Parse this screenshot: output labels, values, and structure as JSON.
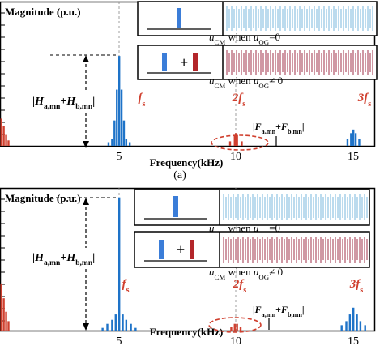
{
  "caption_a": "(a)",
  "chart_data": [
    {
      "type": "bar",
      "ylabel": "Magnitude (p.u.)",
      "xlabel": "Frequency(kHz)",
      "xlim": [
        0,
        16
      ],
      "x_ticks": [
        "5",
        "10",
        "15"
      ],
      "grid": true,
      "harmonic_labels": {
        "fs": "f",
        "fs_sub": "s",
        "two_fs": "2f",
        "three_fs": "3f"
      },
      "annotation_H": {
        "open": "|",
        "H": "H",
        "a_sub": "a,mn",
        "plus": "+",
        "b_sub": "b,mn",
        "close": "|"
      },
      "annotation_F": {
        "open": "|",
        "F": "F",
        "a_sub": "a,mn",
        "plus": "+",
        "b_sub": "b,mn",
        "close": "|"
      },
      "inset_top_caption": {
        "u": "u",
        "cm": "CM",
        "when": " when ",
        "uog": "u",
        "og": "OG",
        "rel": "=0"
      },
      "inset_bottom_caption": {
        "u": "u",
        "cm": "CM",
        "when": " when ",
        "uog": "u",
        "og": "OG",
        "rel": "≠ 0"
      },
      "inset_plus": "+",
      "series": [
        {
          "color": "#1e73c8",
          "points": [
            [
              4.55,
              0.04
            ],
            [
              4.7,
              0.08
            ],
            [
              4.8,
              0.28
            ],
            [
              4.9,
              0.62
            ],
            [
              5.0,
              0.99
            ],
            [
              5.1,
              0.62
            ],
            [
              5.2,
              0.28
            ],
            [
              5.3,
              0.08
            ],
            [
              5.45,
              0.04
            ]
          ]
        },
        {
          "color": "#d0402f",
          "points": [
            [
              9.75,
              0.05
            ],
            [
              9.95,
              0.12
            ],
            [
              10.0,
              0.14
            ],
            [
              10.05,
              0.12
            ],
            [
              10.25,
              0.05
            ]
          ]
        },
        {
          "color": "#1e73c8",
          "points": [
            [
              14.75,
              0.08
            ],
            [
              14.9,
              0.14
            ],
            [
              15.0,
              0.18
            ],
            [
              15.1,
              0.14
            ],
            [
              15.25,
              0.08
            ]
          ]
        },
        {
          "color": "#d0402f",
          "points": [
            [
              0.05,
              0.3
            ],
            [
              0.15,
              0.22
            ],
            [
              0.25,
              0.12
            ],
            [
              0.35,
              0.06
            ]
          ]
        }
      ]
    },
    {
      "type": "bar",
      "ylabel": "Magnitude (p.u.)",
      "xlabel": "Frequency(kHz)",
      "xlim": [
        0,
        16
      ],
      "x_ticks": [
        "5",
        "10",
        "15"
      ],
      "grid": true,
      "harmonic_labels": {
        "fs": "f",
        "fs_sub": "s",
        "two_fs": "2f",
        "three_fs": "3f"
      },
      "annotation_H": {
        "open": "|",
        "H": "H",
        "a_sub": "a,mn",
        "plus": "+",
        "b_sub": "b,mn",
        "close": "|"
      },
      "annotation_F": {
        "open": "|",
        "F": "F",
        "a_sub": "a,mn",
        "plus": "+",
        "b_sub": "b,mn",
        "close": "|"
      },
      "inset_top_caption": {
        "u": "u",
        "cm": "CM",
        "when": " when ",
        "uog": "u",
        "og": "OG",
        "rel": "=0"
      },
      "inset_bottom_caption": {
        "u": "u",
        "cm": "CM",
        "when": " when ",
        "uog": "u",
        "og": "OG",
        "rel": "≠ 0"
      },
      "inset_plus": "+",
      "series": [
        {
          "color": "#1e73c8",
          "points": [
            [
              4.3,
              0.02
            ],
            [
              4.5,
              0.05
            ],
            [
              4.7,
              0.08
            ],
            [
              4.85,
              0.12
            ],
            [
              5.0,
              0.99
            ],
            [
              5.15,
              0.12
            ],
            [
              5.3,
              0.08
            ],
            [
              5.5,
              0.05
            ],
            [
              5.7,
              0.02
            ]
          ]
        },
        {
          "color": "#d0402f",
          "points": [
            [
              9.8,
              0.03
            ],
            [
              9.95,
              0.05
            ],
            [
              10.05,
              0.05
            ],
            [
              10.2,
              0.03
            ]
          ]
        },
        {
          "color": "#1e73c8",
          "points": [
            [
              14.5,
              0.04
            ],
            [
              14.7,
              0.07
            ],
            [
              14.85,
              0.12
            ],
            [
              15.0,
              0.17
            ],
            [
              15.15,
              0.12
            ],
            [
              15.3,
              0.07
            ],
            [
              15.5,
              0.04
            ]
          ]
        },
        {
          "color": "#d0402f",
          "points": [
            [
              0.05,
              0.35
            ],
            [
              0.15,
              0.24
            ],
            [
              0.25,
              0.14
            ],
            [
              0.35,
              0.07
            ]
          ]
        }
      ]
    }
  ]
}
